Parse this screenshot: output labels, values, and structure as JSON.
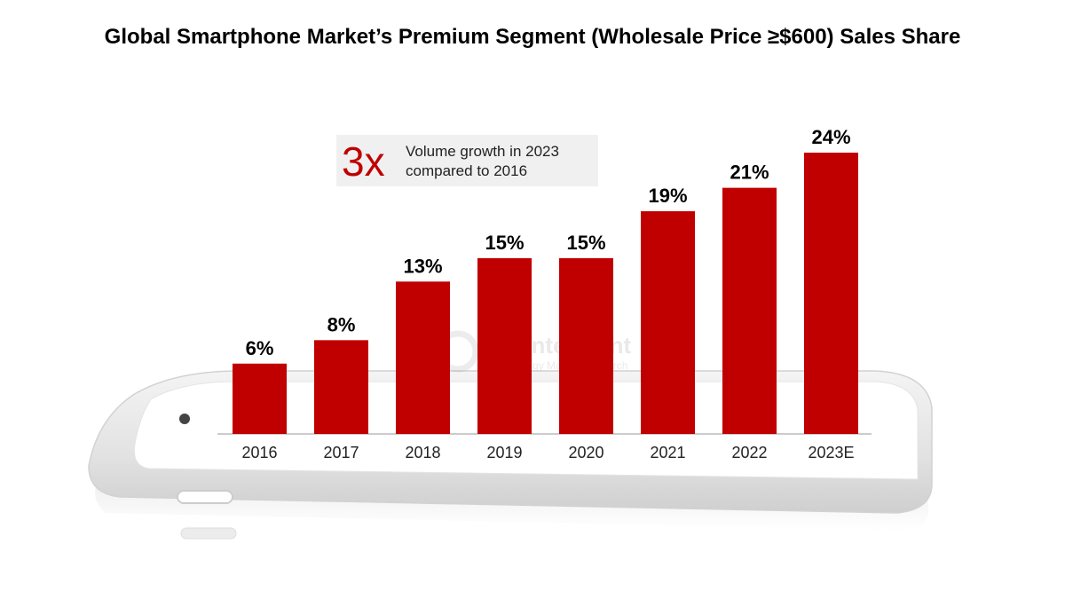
{
  "title": "Global Smartphone Market’s Premium Segment (Wholesale Price ≥$600) Sales Share",
  "callout": {
    "big": "3x",
    "text": "Volume growth in 2023 compared to 2016"
  },
  "watermark": {
    "brand": "Counterpoint",
    "tagline": "Technology Market Research"
  },
  "colors": {
    "bar": "#c00000",
    "text": "#000000"
  },
  "chart_data": {
    "type": "bar",
    "title": "Global Smartphone Market’s Premium Segment (Wholesale Price ≥$600) Sales Share",
    "categories": [
      "2016",
      "2017",
      "2018",
      "2019",
      "2020",
      "2021",
      "2022",
      "2023E"
    ],
    "values": [
      6,
      8,
      13,
      15,
      15,
      19,
      21,
      24
    ],
    "data_labels": [
      "6%",
      "8%",
      "13%",
      "15%",
      "15%",
      "19%",
      "21%",
      "24%"
    ],
    "unit": "%",
    "ylim": [
      0,
      24
    ],
    "grid": false,
    "legend": "none"
  }
}
